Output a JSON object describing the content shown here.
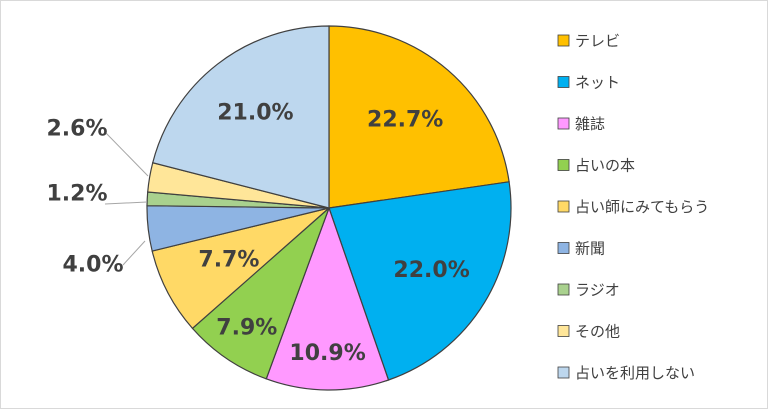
{
  "chart_data": {
    "type": "pie",
    "title": "",
    "start": "top, clockwise",
    "legend_position": "right",
    "categories": [
      "テレビ",
      "ネット",
      "雑誌",
      "占いの本",
      "占い師にみてもらう",
      "新聞",
      "ラジオ",
      "その他",
      "占いを利用しない"
    ],
    "values": [
      22.7,
      22.0,
      10.9,
      7.9,
      7.7,
      4.0,
      1.2,
      2.6,
      21.0
    ],
    "labels": [
      "22.7%",
      "22.0%",
      "10.9%",
      "7.9%",
      "7.7%",
      "4.0%",
      "1.2%",
      "2.6%",
      "21.0%"
    ],
    "colors": [
      "#FFC000",
      "#00B0F0",
      "#FF99FF",
      "#92D050",
      "#FFD966",
      "#8EB4E3",
      "#A9D18E",
      "#FFE699",
      "#BDD7EE"
    ],
    "outline_color": "#404040"
  }
}
